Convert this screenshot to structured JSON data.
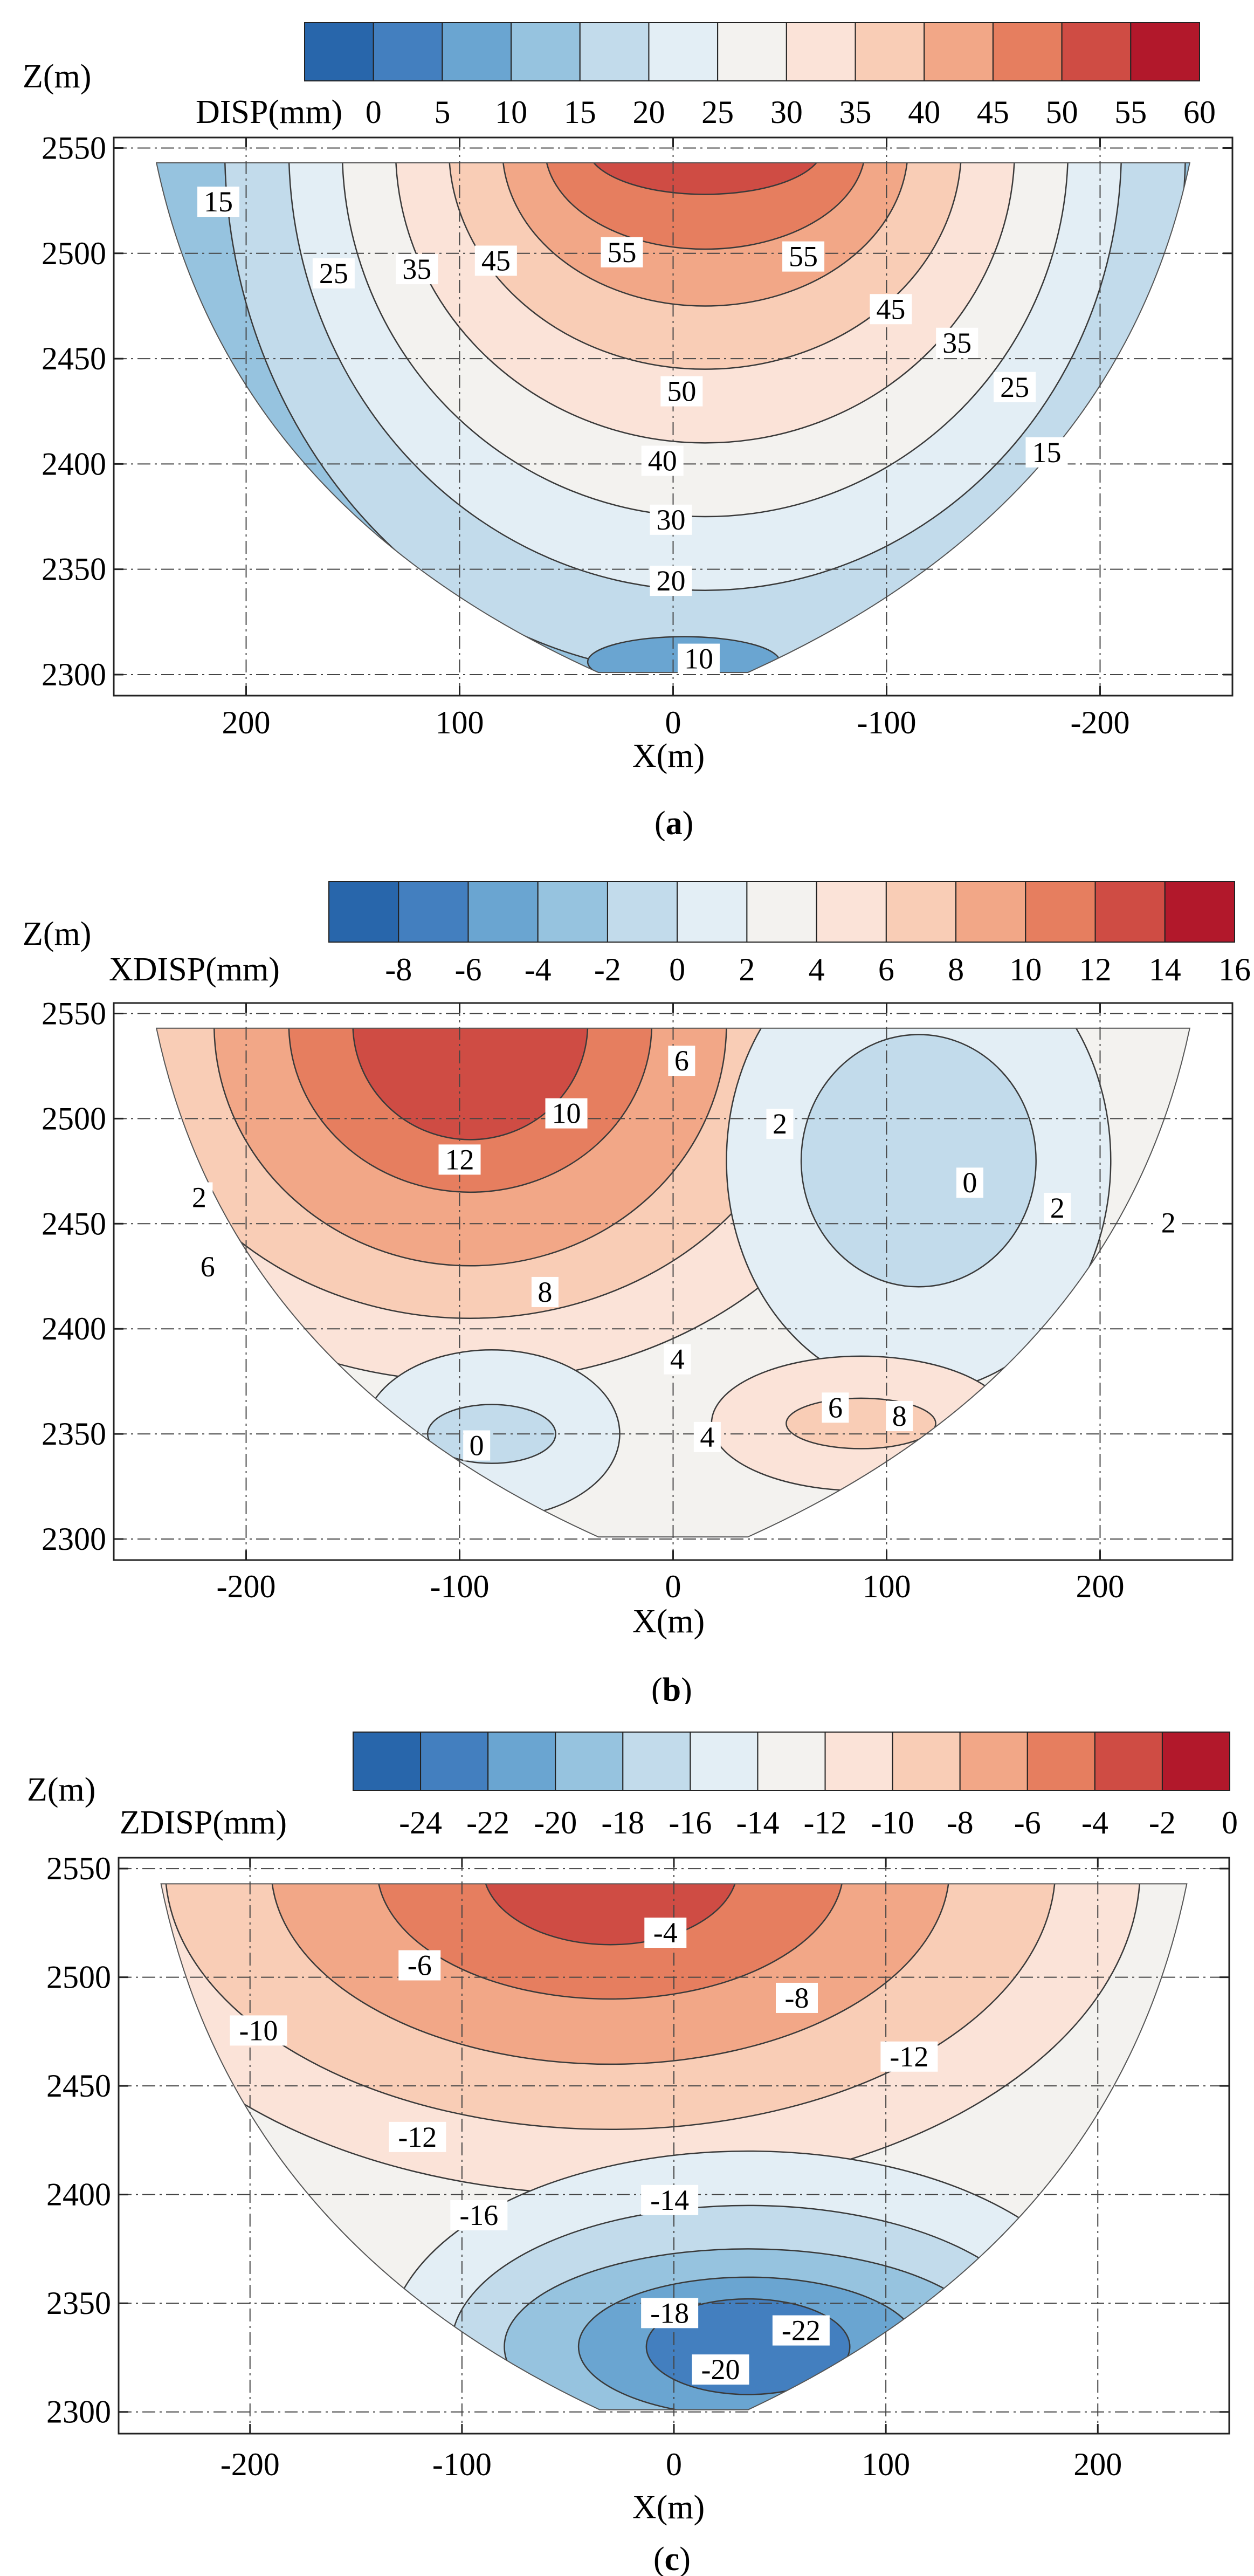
{
  "chart_data": [
    {
      "id": "a",
      "type": "contour",
      "panel_label": "a",
      "legend_title": "DISP(mm)",
      "legend_levels": [
        0,
        5,
        10,
        15,
        20,
        25,
        30,
        35,
        40,
        45,
        50,
        55,
        60
      ],
      "legend_tick_labels": [
        "0",
        "5",
        "10",
        "15",
        "20",
        "25",
        "30",
        "35",
        "40",
        "45",
        "50",
        "55",
        "60"
      ],
      "legend_colors": [
        "#2866ab",
        "#437fbf",
        "#6aa5d1",
        "#96c3df",
        "#c2dbeb",
        "#e3eef5",
        "#f3f2ef",
        "#fbe3d8",
        "#f9cdb6",
        "#f2a787",
        "#e67e5f",
        "#cf4c44",
        "#b2182b"
      ],
      "xlabel": "X(m)",
      "ylabel": "Z(m)",
      "xlim": [
        262,
        -262
      ],
      "ylim": [
        2290,
        2555
      ],
      "x_ticks": [
        200,
        100,
        0,
        -100,
        -200
      ],
      "x_tick_labels": [
        "200",
        "100",
        "0",
        "-100",
        "-200"
      ],
      "y_ticks": [
        2300,
        2350,
        2400,
        2450,
        2500,
        2550
      ],
      "y_tick_labels": [
        "2300",
        "2350",
        "2400",
        "2450",
        "2500",
        "2550"
      ],
      "grid": "dash-dot",
      "contour_labels": [
        {
          "text": "15",
          "x": 213,
          "z": 2524
        },
        {
          "text": "25",
          "x": 159,
          "z": 2490
        },
        {
          "text": "35",
          "x": 120,
          "z": 2492
        },
        {
          "text": "45",
          "x": 83,
          "z": 2496
        },
        {
          "text": "55",
          "x": 24,
          "z": 2500
        },
        {
          "text": "55",
          "x": -61,
          "z": 2498
        },
        {
          "text": "45",
          "x": -102,
          "z": 2473
        },
        {
          "text": "35",
          "x": -133,
          "z": 2457
        },
        {
          "text": "25",
          "x": -160,
          "z": 2436
        },
        {
          "text": "15",
          "x": -175,
          "z": 2405
        },
        {
          "text": "50",
          "x": -4,
          "z": 2434
        },
        {
          "text": "40",
          "x": 5,
          "z": 2401
        },
        {
          "text": "30",
          "x": 1,
          "z": 2373
        },
        {
          "text": "20",
          "x": 1,
          "z": 2344
        },
        {
          "text": "10",
          "x": -12,
          "z": 2307
        }
      ]
    },
    {
      "id": "b",
      "type": "contour",
      "panel_label": "b",
      "legend_title": "XDISP(mm)",
      "legend_levels": [
        -8,
        -6,
        -4,
        -2,
        0,
        2,
        4,
        6,
        8,
        10,
        12,
        14,
        16
      ],
      "legend_tick_labels": [
        "-8",
        "-6",
        "-4",
        "-2",
        "0",
        "2",
        "4",
        "6",
        "8",
        "10",
        "12",
        "14",
        "16"
      ],
      "legend_colors": [
        "#2866ab",
        "#437fbf",
        "#6aa5d1",
        "#96c3df",
        "#c2dbeb",
        "#e3eef5",
        "#f3f2ef",
        "#fbe3d8",
        "#f9cdb6",
        "#f2a787",
        "#e67e5f",
        "#cf4c44",
        "#b2182b"
      ],
      "xlabel": "X(m)",
      "ylabel": "Z(m)",
      "xlim": [
        -262,
        262
      ],
      "ylim": [
        2290,
        2555
      ],
      "x_ticks": [
        -200,
        -100,
        0,
        100,
        200
      ],
      "x_tick_labels": [
        "-200",
        "-100",
        "0",
        "100",
        "200"
      ],
      "y_ticks": [
        2300,
        2350,
        2400,
        2450,
        2500,
        2550
      ],
      "y_tick_labels": [
        "2300",
        "2350",
        "2400",
        "2450",
        "2500",
        "2550"
      ],
      "grid": "dash-dot",
      "contour_labels": [
        {
          "text": "12",
          "x": -100,
          "z": 2480
        },
        {
          "text": "10",
          "x": -50,
          "z": 2502
        },
        {
          "text": "6",
          "x": 4,
          "z": 2527
        },
        {
          "text": "2",
          "x": 50,
          "z": 2497
        },
        {
          "text": "0",
          "x": 139,
          "z": 2469
        },
        {
          "text": "2",
          "x": 180,
          "z": 2457
        },
        {
          "text": "2",
          "x": 232,
          "z": 2450
        },
        {
          "text": "2",
          "x": -222,
          "z": 2462
        },
        {
          "text": "6",
          "x": -218,
          "z": 2429
        },
        {
          "text": "8",
          "x": -60,
          "z": 2417
        },
        {
          "text": "4",
          "x": 2,
          "z": 2385
        },
        {
          "text": "4",
          "x": 16,
          "z": 2348
        },
        {
          "text": "6",
          "x": 76,
          "z": 2362
        },
        {
          "text": "8",
          "x": 106,
          "z": 2358
        },
        {
          "text": "0",
          "x": -92,
          "z": 2344
        }
      ]
    },
    {
      "id": "c",
      "type": "contour",
      "panel_label": "c",
      "legend_title": "ZDISP(mm)",
      "legend_levels": [
        -24,
        -22,
        -20,
        -18,
        -16,
        -14,
        -12,
        -10,
        -8,
        -6,
        -4,
        -2,
        0
      ],
      "legend_tick_labels": [
        "-24",
        "-22",
        "-20",
        "-18",
        "-16",
        "-14",
        "-12",
        "-10",
        "-8",
        "-6",
        "-4",
        "-2",
        "0"
      ],
      "legend_colors": [
        "#2866ab",
        "#437fbf",
        "#6aa5d1",
        "#96c3df",
        "#c2dbeb",
        "#e3eef5",
        "#f3f2ef",
        "#fbe3d8",
        "#f9cdb6",
        "#f2a787",
        "#e67e5f",
        "#cf4c44",
        "#b2182b"
      ],
      "xlabel": "X(m)",
      "ylabel": "Z(m)",
      "xlim": [
        -262,
        262
      ],
      "ylim": [
        2290,
        2555
      ],
      "x_ticks": [
        -200,
        -100,
        0,
        100,
        200
      ],
      "x_tick_labels": [
        "-200",
        "-100",
        "0",
        "100",
        "200"
      ],
      "y_ticks": [
        2300,
        2350,
        2400,
        2450,
        2500,
        2550
      ],
      "y_tick_labels": [
        "2300",
        "2350",
        "2400",
        "2450",
        "2500",
        "2550"
      ],
      "grid": "dash-dot",
      "contour_labels": [
        {
          "text": "-4",
          "x": -4,
          "z": 2520
        },
        {
          "text": "-6",
          "x": -120,
          "z": 2505
        },
        {
          "text": "-8",
          "x": 58,
          "z": 2490
        },
        {
          "text": "-10",
          "x": -196,
          "z": 2475
        },
        {
          "text": "-12",
          "x": 111,
          "z": 2463
        },
        {
          "text": "-12",
          "x": -121,
          "z": 2426
        },
        {
          "text": "-14",
          "x": -2,
          "z": 2397
        },
        {
          "text": "-16",
          "x": -92,
          "z": 2390
        },
        {
          "text": "-18",
          "x": -2,
          "z": 2345
        },
        {
          "text": "-20",
          "x": 22,
          "z": 2319
        },
        {
          "text": "-22",
          "x": 60,
          "z": 2337
        }
      ]
    }
  ]
}
